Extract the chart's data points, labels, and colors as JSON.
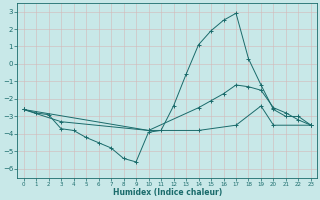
{
  "xlabel": "Humidex (Indice chaleur)",
  "bg_color": "#c8e8e8",
  "grid_color_major": "#b0c8c8",
  "grid_color_minor": "#d4b8b8",
  "line_color": "#1a6b6b",
  "xlim": [
    -0.5,
    23.5
  ],
  "ylim": [
    -6.5,
    3.5
  ],
  "yticks": [
    -6,
    -5,
    -4,
    -3,
    -2,
    -1,
    0,
    1,
    2,
    3
  ],
  "xticks": [
    0,
    1,
    2,
    3,
    4,
    5,
    6,
    7,
    8,
    9,
    10,
    11,
    12,
    13,
    14,
    15,
    16,
    17,
    18,
    19,
    20,
    21,
    22,
    23
  ],
  "series1": [
    [
      0,
      -2.6
    ],
    [
      1,
      -2.8
    ],
    [
      2,
      -2.9
    ],
    [
      3,
      -3.7
    ],
    [
      4,
      -3.8
    ],
    [
      5,
      -4.2
    ],
    [
      6,
      -4.5
    ],
    [
      7,
      -4.8
    ],
    [
      8,
      -5.4
    ],
    [
      9,
      -5.6
    ],
    [
      10,
      -3.9
    ],
    [
      11,
      -3.8
    ],
    [
      12,
      -2.4
    ],
    [
      13,
      -0.6
    ],
    [
      14,
      1.1
    ],
    [
      15,
      1.9
    ],
    [
      16,
      2.5
    ],
    [
      17,
      2.9
    ],
    [
      18,
      0.3
    ],
    [
      19,
      -1.2
    ],
    [
      20,
      -2.6
    ],
    [
      21,
      -3.0
    ],
    [
      22,
      -3.0
    ],
    [
      23,
      -3.5
    ]
  ],
  "series2": [
    [
      0,
      -2.6
    ],
    [
      3,
      -3.3
    ],
    [
      10,
      -3.8
    ],
    [
      14,
      -2.5
    ],
    [
      15,
      -2.1
    ],
    [
      16,
      -1.7
    ],
    [
      17,
      -1.2
    ],
    [
      18,
      -1.3
    ],
    [
      19,
      -1.5
    ],
    [
      20,
      -2.5
    ],
    [
      21,
      -2.8
    ],
    [
      22,
      -3.2
    ],
    [
      23,
      -3.5
    ]
  ],
  "series3": [
    [
      0,
      -2.6
    ],
    [
      10,
      -3.8
    ],
    [
      14,
      -3.8
    ],
    [
      17,
      -3.5
    ],
    [
      19,
      -2.4
    ],
    [
      20,
      -3.5
    ],
    [
      23,
      -3.5
    ]
  ]
}
